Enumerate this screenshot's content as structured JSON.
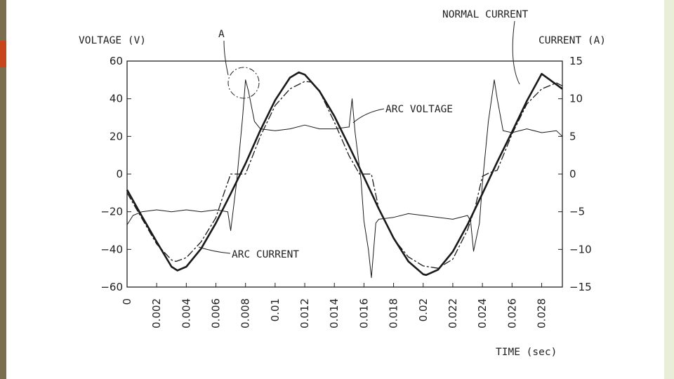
{
  "page": {
    "left_band_color": "#7a6e4e",
    "accent_tab_color": "#c8441a",
    "right_band_color": "#e8efd8"
  },
  "chart_data": {
    "type": "line",
    "xlabel": "TIME (sec)",
    "ylabel_left": "VOLTAGE (V)",
    "ylabel_right": "CURRENT (A)",
    "xlim": [
      0,
      0.0294
    ],
    "ylim_left": [
      -60,
      60
    ],
    "ylim_right": [
      -15,
      15
    ],
    "x_ticks": [
      "0",
      "0.002",
      "0.004",
      "0.006",
      "0.008",
      "0.01",
      "0.012",
      "0.014",
      "0.016",
      "0.018",
      "0.02",
      "0.022",
      "0.024",
      "0.026",
      "0.028"
    ],
    "y_ticks_left": [
      "60",
      "40",
      "20",
      "0",
      "−20",
      "−40",
      "−60"
    ],
    "y_ticks_right": [
      "15",
      "10",
      "5",
      "0",
      "−5",
      "−10",
      "−15"
    ],
    "grid": false,
    "annotations": {
      "normal_current": "NORMAL CURRENT",
      "arc_voltage": "ARC VOLTAGE",
      "arc_current": "ARC CURRENT",
      "point_a": "A"
    },
    "series": [
      {
        "name": "NORMAL CURRENT",
        "axis": "right",
        "style": "solid-thick",
        "x": [
          0,
          0.001,
          0.002,
          0.003,
          0.0034,
          0.004,
          0.005,
          0.006,
          0.007,
          0.008,
          0.009,
          0.01,
          0.011,
          0.0116,
          0.012,
          0.013,
          0.014,
          0.015,
          0.016,
          0.017,
          0.018,
          0.019,
          0.02,
          0.0202,
          0.021,
          0.022,
          0.023,
          0.024,
          0.025,
          0.026,
          0.027,
          0.028,
          0.0294
        ],
        "y": [
          -2.1,
          -5.6,
          -9.0,
          -12.3,
          -12.8,
          -12.3,
          -9.9,
          -6.5,
          -2.6,
          1.4,
          5.8,
          9.8,
          12.8,
          13.5,
          13.2,
          11.0,
          7.7,
          3.7,
          -0.4,
          -4.6,
          -8.5,
          -11.6,
          -13.3,
          -13.4,
          -12.7,
          -10.3,
          -6.7,
          -2.6,
          1.6,
          5.6,
          9.7,
          13.3,
          11.3
        ]
      },
      {
        "name": "ARC CURRENT",
        "axis": "right",
        "style": "dashed",
        "x": [
          0,
          0.001,
          0.002,
          0.003,
          0.0033,
          0.004,
          0.005,
          0.006,
          0.0065,
          0.007,
          0.0078,
          0.008,
          0.009,
          0.01,
          0.011,
          0.012,
          0.0125,
          0.013,
          0.014,
          0.015,
          0.0157,
          0.016,
          0.0165,
          0.017,
          0.018,
          0.019,
          0.02,
          0.021,
          0.022,
          0.023,
          0.0235,
          0.024,
          0.0245,
          0.025,
          0.026,
          0.027,
          0.028,
          0.029,
          0.0294
        ],
        "y": [
          -2.5,
          -5.9,
          -9.3,
          -11.4,
          -11.6,
          -11.1,
          -9.0,
          -5.8,
          -2.8,
          0.0,
          0.0,
          0.0,
          5.0,
          9.1,
          11.3,
          12.3,
          12.2,
          11.0,
          6.9,
          2.4,
          0.0,
          0.0,
          0.0,
          -4.6,
          -8.6,
          -11.0,
          -12.2,
          -12.5,
          -11.3,
          -7.4,
          -4.5,
          -0.3,
          0.2,
          0.5,
          5.3,
          9.3,
          11.3,
          12.1,
          11.7
        ]
      },
      {
        "name": "ARC VOLTAGE",
        "axis": "left",
        "style": "thin",
        "x": [
          0,
          0.0004,
          0.001,
          0.002,
          0.003,
          0.004,
          0.005,
          0.006,
          0.0068,
          0.007,
          0.0074,
          0.0078,
          0.008,
          0.0082,
          0.0086,
          0.009,
          0.01,
          0.011,
          0.012,
          0.013,
          0.014,
          0.015,
          0.0152,
          0.0154,
          0.0158,
          0.016,
          0.0163,
          0.0165,
          0.0168,
          0.017,
          0.018,
          0.019,
          0.02,
          0.021,
          0.022,
          0.023,
          0.0232,
          0.0234,
          0.0238,
          0.024,
          0.0244,
          0.0248,
          0.025,
          0.0254,
          0.026,
          0.027,
          0.028,
          0.029,
          0.0294
        ],
        "y": [
          -27,
          -22,
          -20,
          -19,
          -20,
          -19,
          -20,
          -19,
          -20,
          -30,
          -4,
          30,
          50,
          44,
          28,
          24,
          23,
          24,
          26,
          24,
          24,
          25,
          40,
          22,
          -3,
          -25,
          -40,
          -55,
          -26,
          -24,
          -23,
          -21,
          -22,
          -23,
          -24,
          -22,
          -25,
          -41,
          -26,
          -5,
          28,
          50,
          40,
          23,
          22,
          24,
          22,
          23,
          20
        ]
      }
    ]
  }
}
